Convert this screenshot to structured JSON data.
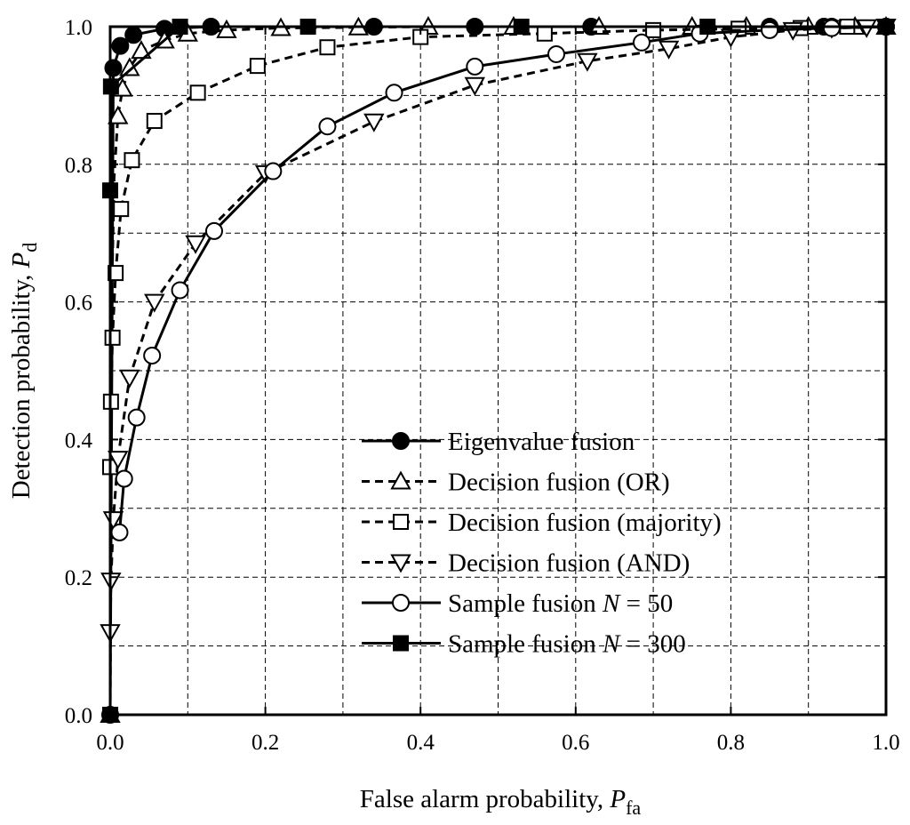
{
  "chart_data": {
    "type": "line",
    "xlabel": {
      "main": "False alarm probability, ",
      "var": "P",
      "sub": "fa"
    },
    "ylabel": {
      "main": "Detection probability, ",
      "var": "P",
      "sub": "d"
    },
    "xlim": [
      0,
      1
    ],
    "ylim": [
      0,
      1
    ],
    "xticks": [
      "0.0",
      "0.2",
      "0.4",
      "0.6",
      "0.8",
      "1.0"
    ],
    "yticks": [
      "0.0",
      "0.2",
      "0.4",
      "0.6",
      "0.8",
      "1.0"
    ],
    "grid": true,
    "legend_position": "bottom-right",
    "series": [
      {
        "name": "Eigenvalue fusion",
        "line": "solid",
        "marker": "circle",
        "filled": true,
        "x": [
          0.0,
          0.004,
          0.013,
          0.03,
          0.07,
          0.13,
          0.34,
          0.47,
          0.62,
          0.85,
          0.92,
          0.93,
          1.0
        ],
        "y": [
          0.0,
          0.94,
          0.972,
          0.988,
          0.997,
          1.0,
          1.0,
          1.0,
          1.0,
          1.0,
          1.0,
          1.0,
          1.0
        ]
      },
      {
        "name": "Decision fusion (OR)",
        "line": "dashed",
        "marker": "triangle-up",
        "filled": false,
        "x": [
          0.0,
          0.01,
          0.016,
          0.025,
          0.04,
          0.07,
          0.1,
          0.15,
          0.22,
          0.32,
          0.41,
          0.52,
          0.63,
          0.75,
          0.82,
          0.9,
          0.96,
          1.0
        ],
        "y": [
          0.0,
          0.87,
          0.91,
          0.94,
          0.965,
          0.98,
          0.99,
          0.995,
          0.998,
          0.999,
          1.0,
          1.0,
          1.0,
          1.0,
          1.0,
          1.0,
          1.0,
          1.0
        ],
        "line_x": [
          0.0,
          0.002,
          0.005,
          0.01,
          0.016,
          0.025,
          0.04,
          0.07,
          0.1,
          0.15,
          0.22,
          0.32,
          0.41,
          0.52,
          0.63,
          0.75,
          0.82,
          0.9,
          0.96,
          1.0
        ],
        "line_y": [
          0.0,
          0.6,
          0.78,
          0.87,
          0.91,
          0.94,
          0.965,
          0.98,
          0.99,
          0.995,
          0.998,
          0.999,
          1.0,
          1.0,
          1.0,
          1.0,
          1.0,
          1.0,
          1.0,
          1.0
        ]
      },
      {
        "name": "Decision fusion (majority)",
        "line": "dashed",
        "marker": "square",
        "filled": false,
        "x": [
          0.0,
          0.0,
          0.001,
          0.003,
          0.007,
          0.014,
          0.028,
          0.057,
          0.113,
          0.19,
          0.28,
          0.4,
          0.56,
          0.7,
          0.81,
          0.89,
          0.95,
          1.0
        ],
        "y": [
          0.0,
          0.36,
          0.455,
          0.548,
          0.642,
          0.735,
          0.806,
          0.863,
          0.904,
          0.943,
          0.97,
          0.985,
          0.99,
          0.995,
          0.997,
          0.998,
          1.0,
          1.0
        ]
      },
      {
        "name": "Decision fusion (AND)",
        "line": "dashed",
        "marker": "triangle-down",
        "filled": false,
        "x": [
          0.0,
          0.001,
          0.004,
          0.01,
          0.025,
          0.057,
          0.11,
          0.2,
          0.34,
          0.47,
          0.615,
          0.72,
          0.8,
          0.88,
          0.93,
          0.975,
          1.0
        ],
        "y": [
          0.12,
          0.195,
          0.284,
          0.372,
          0.49,
          0.6,
          0.685,
          0.787,
          0.862,
          0.915,
          0.95,
          0.968,
          0.985,
          0.995,
          0.998,
          0.999,
          1.0
        ]
      },
      {
        "name": "Sample fusion N = 50",
        "name_text": "Sample fusion ",
        "name_var": "N",
        "name_rest": " = 50",
        "line": "solid",
        "marker": "circle",
        "filled": false,
        "x": [
          0.012,
          0.018,
          0.034,
          0.054,
          0.09,
          0.134,
          0.21,
          0.28,
          0.366,
          0.47,
          0.575,
          0.685,
          0.76,
          0.85,
          0.93,
          1.0
        ],
        "y": [
          0.265,
          0.343,
          0.432,
          0.522,
          0.617,
          0.703,
          0.79,
          0.855,
          0.904,
          0.942,
          0.96,
          0.977,
          0.99,
          0.995,
          0.998,
          1.0
        ]
      },
      {
        "name": "Sample fusion N = 300",
        "name_text": "Sample fusion ",
        "name_var": "N",
        "name_rest": " = 300",
        "line": "solid",
        "marker": "square",
        "filled": true,
        "x": [
          0.0,
          0.0,
          0.001,
          0.09,
          0.255,
          0.53,
          0.77,
          1.0
        ],
        "y": [
          0.0,
          0.762,
          0.913,
          1.0,
          1.0,
          1.0,
          1.0,
          1.0
        ]
      }
    ]
  }
}
